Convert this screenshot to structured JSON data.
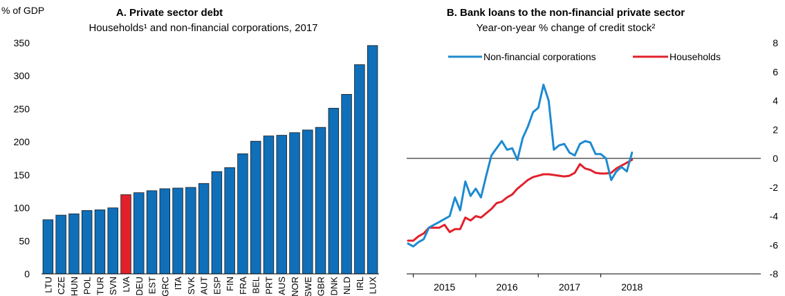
{
  "colors": {
    "bar": "#0f6fb8",
    "highlight": "#e2202b",
    "nfc_line": "#1d8ad1",
    "hh_line": "#e2202b"
  },
  "chart_data": [
    {
      "type": "bar",
      "panel_label": "A. Private sector debt",
      "subtitle": "Households¹ and non-financial corporations, 2017",
      "ylabel": "% of GDP",
      "ylim": [
        0,
        350
      ],
      "yticks": [
        0,
        50,
        100,
        150,
        200,
        250,
        300,
        350
      ],
      "grid": false,
      "categories": [
        "LTU",
        "CZE",
        "HUN",
        "POL",
        "TUR",
        "SVN",
        "LVA",
        "DEU",
        "EST",
        "GRC",
        "ITA",
        "SVK",
        "AUT",
        "ESP",
        "FIN",
        "FRA",
        "BEL",
        "PRT",
        "AUS",
        "NOR",
        "SWE",
        "GBR",
        "DNK",
        "NLD",
        "IRL",
        "LUX"
      ],
      "values": [
        82,
        89,
        91,
        96,
        97,
        100,
        120,
        123,
        126,
        129,
        130,
        131,
        137,
        155,
        161,
        182,
        201,
        209,
        210,
        214,
        218,
        222,
        251,
        272,
        317,
        346
      ],
      "highlight": "LVA"
    },
    {
      "type": "line",
      "panel_label": "B. Bank loans to the non-financial private sector",
      "subtitle": "Year-on-year % change of credit stock²",
      "ylim": [
        -8,
        8
      ],
      "yticks": [
        8,
        6,
        4,
        2,
        0,
        -2,
        -4,
        -6,
        -8
      ],
      "x_start": "2014-12",
      "xticks": [
        "2015",
        "2016",
        "2017",
        "2018"
      ],
      "zero_line": true,
      "legend": "top",
      "series": [
        {
          "name": "Non-financial corporations",
          "values": [
            -5.9,
            -6.1,
            -5.8,
            -5.6,
            -4.8,
            -4.6,
            -4.4,
            -4.2,
            -4.0,
            -2.7,
            -3.6,
            -1.6,
            -2.6,
            -2.1,
            -2.7,
            -1.2,
            0.2,
            0.7,
            1.2,
            0.6,
            0.7,
            -0.1,
            1.4,
            2.2,
            3.2,
            3.5,
            5.1,
            4.0,
            0.6,
            0.9,
            1.0,
            0.4,
            0.2,
            1.0,
            1.2,
            1.1,
            0.3,
            0.3,
            0.0,
            -1.5,
            -0.9,
            -0.6,
            -0.9,
            0.4
          ]
        },
        {
          "name": "Households",
          "values": [
            -5.7,
            -5.7,
            -5.4,
            -5.2,
            -4.8,
            -4.8,
            -4.8,
            -4.6,
            -5.1,
            -4.9,
            -4.9,
            -4.1,
            -4.3,
            -4.0,
            -4.1,
            -3.8,
            -3.5,
            -3.1,
            -3.0,
            -2.7,
            -2.5,
            -2.1,
            -1.8,
            -1.5,
            -1.3,
            -1.2,
            -1.1,
            -1.1,
            -1.15,
            -1.2,
            -1.25,
            -1.2,
            -1.0,
            -0.4,
            -0.7,
            -0.8,
            -1.0,
            -1.05,
            -1.05,
            -1.0,
            -0.7,
            -0.5,
            -0.3,
            -0.1
          ]
        }
      ]
    }
  ]
}
